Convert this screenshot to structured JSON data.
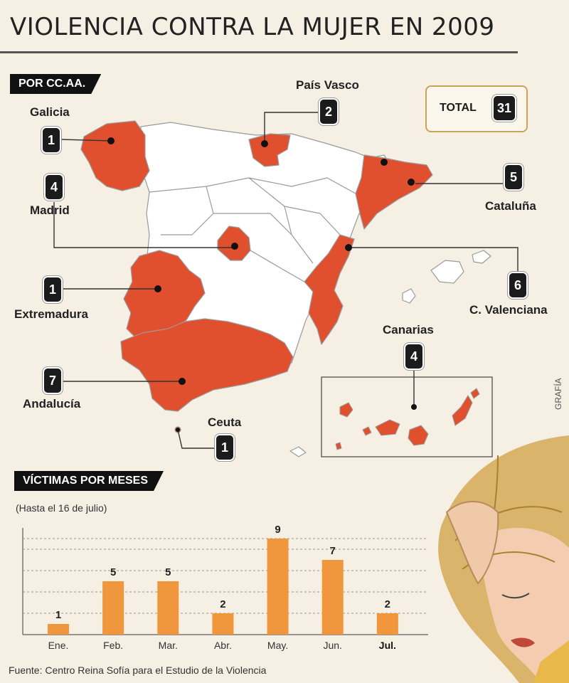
{
  "title": "VIOLENCIA CONTRA LA MUJER EN 2009",
  "map": {
    "section_label": "POR CC.AA.",
    "total_label": "TOTAL",
    "total_value": "31",
    "regions": [
      {
        "name": "Galicia",
        "value": "1"
      },
      {
        "name": "País Vasco",
        "value": "2"
      },
      {
        "name": "Madrid",
        "value": "4"
      },
      {
        "name": "Cataluña",
        "value": "5"
      },
      {
        "name": "Extremadura",
        "value": "1"
      },
      {
        "name": "C. Valenciana",
        "value": "6"
      },
      {
        "name": "Canarias",
        "value": "4"
      },
      {
        "name": "Andalucía",
        "value": "7"
      },
      {
        "name": "Ceuta",
        "value": "1"
      }
    ],
    "colors": {
      "highlight": "#e0502e",
      "land": "#ffffff",
      "outline": "#8a8a8a"
    }
  },
  "chart_section_label": "VÍCTIMAS POR MESES",
  "chart_note": "(Hasta el 16 de julio)",
  "chart_data": {
    "type": "bar",
    "categories": [
      "Ene.",
      "Feb.",
      "Mar.",
      "Abr.",
      "May.",
      "Jun.",
      "Jul."
    ],
    "values": [
      1,
      5,
      5,
      2,
      9,
      7,
      2
    ],
    "bold_category": "Jul.",
    "ylim": [
      0,
      10
    ],
    "grid": true,
    "bar_color": "#f0963c"
  },
  "source": "Fuente: Centro Reina Sofía para el Estudio de la Violencia",
  "credit": "GRAFÍA"
}
